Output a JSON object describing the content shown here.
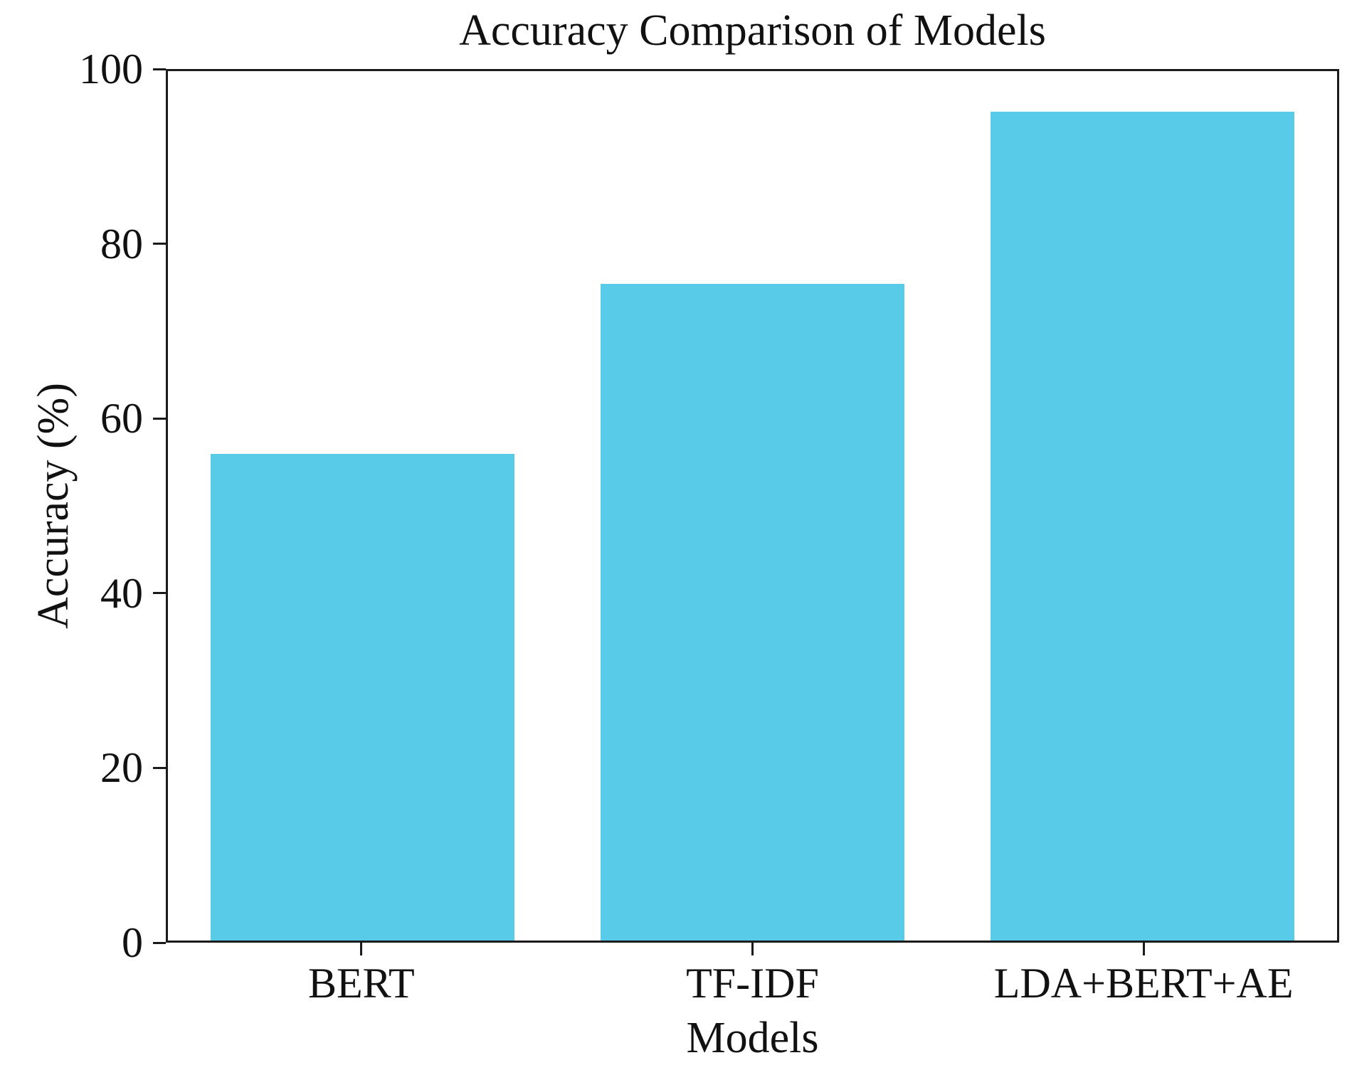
{
  "chart_data": {
    "type": "bar",
    "title": "Accuracy Comparison of Models",
    "xlabel": "Models",
    "ylabel": "Accuracy (%)",
    "categories": [
      "BERT",
      "TF-IDF",
      "LDA+BERT+AE"
    ],
    "values": [
      56,
      75.5,
      95.3
    ],
    "ylim": [
      0,
      100
    ],
    "yticks": [
      0,
      20,
      40,
      60,
      80,
      100
    ],
    "grid": false,
    "legend_position": "none",
    "bar_color": "#58CBE9",
    "bar_width_fraction": 0.78
  },
  "colors": {
    "axis": "#1b1b1b",
    "text": "#111111",
    "background": "#ffffff"
  }
}
